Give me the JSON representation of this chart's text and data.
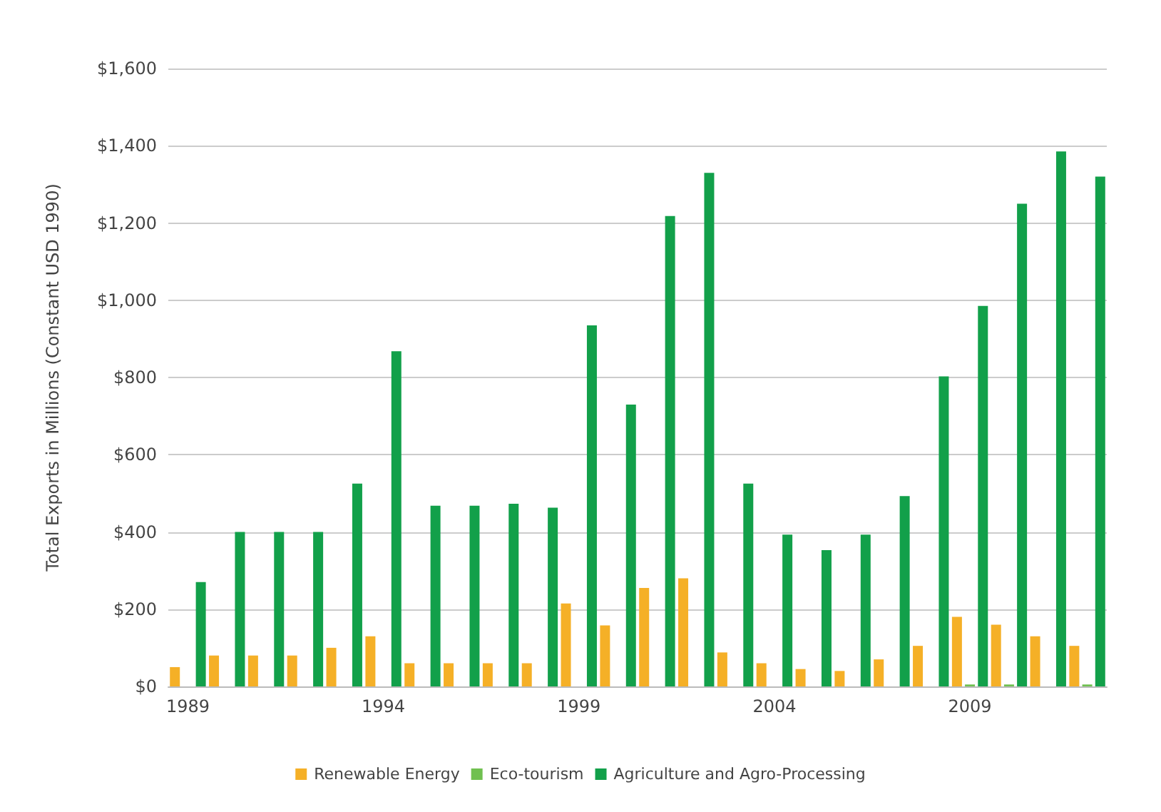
{
  "chart_data": {
    "type": "bar",
    "ylabel": "Total Exports in Millions (Constant USD 1990)",
    "categories": [
      "1989",
      null,
      null,
      null,
      null,
      "1994",
      null,
      null,
      null,
      null,
      "1999",
      null,
      null,
      null,
      null,
      "2004",
      null,
      null,
      null,
      null,
      "2009",
      null,
      null,
      null
    ],
    "series": [
      {
        "name": "Renewable Energy",
        "color": "#f5b027",
        "values": [
          50,
          80,
          80,
          80,
          100,
          130,
          60,
          60,
          60,
          60,
          215,
          158,
          255,
          280,
          88,
          60,
          45,
          40,
          70,
          105,
          180,
          160,
          130,
          105
        ]
      },
      {
        "name": "Eco-tourism",
        "color": "#70c050",
        "values": [
          0,
          0,
          0,
          0,
          0,
          0,
          0,
          0,
          0,
          0,
          0,
          0,
          0,
          0,
          0,
          0,
          0,
          0,
          0,
          0,
          5,
          5,
          0,
          5
        ]
      },
      {
        "name": "Agriculture and Agro-Processing",
        "color": "#12a04a",
        "values": [
          270,
          400,
          400,
          400,
          525,
          868,
          468,
          468,
          473,
          463,
          935,
          730,
          1218,
          1330,
          525,
          393,
          353,
          393,
          493,
          803,
          985,
          1250,
          1385,
          1320
        ]
      }
    ],
    "ylim": [
      0,
      1600
    ],
    "yticks": [
      {
        "value": 0,
        "label": "$0"
      },
      {
        "value": 200,
        "label": "$200"
      },
      {
        "value": 400,
        "label": "$400"
      },
      {
        "value": 600,
        "label": "$600"
      },
      {
        "value": 800,
        "label": "$800"
      },
      {
        "value": 1000,
        "label": "$1,000"
      },
      {
        "value": 1200,
        "label": "$1,200"
      },
      {
        "value": 1400,
        "label": "$1,400"
      },
      {
        "value": 1600,
        "label": "$1,600"
      }
    ],
    "grid": "y",
    "legend": "bottom"
  }
}
